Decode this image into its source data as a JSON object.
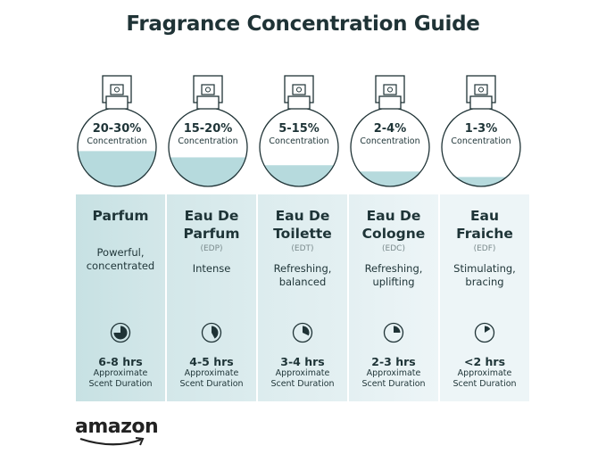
{
  "title": "Fragrance Concentration Guide",
  "logo": "amazon",
  "colors": {
    "text": "#1f3336",
    "liquid": "#b6dadd",
    "panel_left": "#c6e1e3",
    "panel_right": "#eef5f7"
  },
  "types": [
    {
      "concentration": "20-30%",
      "concentration_label": "Concentration",
      "name_line1": "Parfum",
      "name_line2": "",
      "abbr": "",
      "desc_line1": "Powerful,",
      "desc_line2": "concentrated",
      "duration": "6-8 hrs",
      "duration_label1": "Approximate",
      "duration_label2": "Scent Duration",
      "fill_level": 0.45,
      "clock_fraction": 0.75
    },
    {
      "concentration": "15-20%",
      "concentration_label": "Concentration",
      "name_line1": "Eau De",
      "name_line2": "Parfum",
      "abbr": "(EDP)",
      "desc_line1": "Intense",
      "desc_line2": "",
      "duration": "4-5 hrs",
      "duration_label1": "Approximate",
      "duration_label2": "Scent Duration",
      "fill_level": 0.37,
      "clock_fraction": 0.42
    },
    {
      "concentration": "5-15%",
      "concentration_label": "Concentration",
      "name_line1": "Eau De",
      "name_line2": "Toilette",
      "abbr": "(EDT)",
      "desc_line1": "Refreshing,",
      "desc_line2": "balanced",
      "duration": "3-4 hrs",
      "duration_label1": "Approximate",
      "duration_label2": "Scent Duration",
      "fill_level": 0.27,
      "clock_fraction": 0.32
    },
    {
      "concentration": "2-4%",
      "concentration_label": "Concentration",
      "name_line1": "Eau De",
      "name_line2": "Cologne",
      "abbr": "(EDC)",
      "desc_line1": "Refreshing,",
      "desc_line2": "uplifting",
      "duration": "2-3 hrs",
      "duration_label1": "Approximate",
      "duration_label2": "Scent Duration",
      "fill_level": 0.19,
      "clock_fraction": 0.25
    },
    {
      "concentration": "1-3%",
      "concentration_label": "Concentration",
      "name_line1": "Eau",
      "name_line2": "Fraiche",
      "abbr": "(EDF)",
      "desc_line1": "Stimulating,",
      "desc_line2": "bracing",
      "duration": "<2 hrs",
      "duration_label1": "Approximate",
      "duration_label2": "Scent Duration",
      "fill_level": 0.12,
      "clock_fraction": 0.16
    }
  ]
}
